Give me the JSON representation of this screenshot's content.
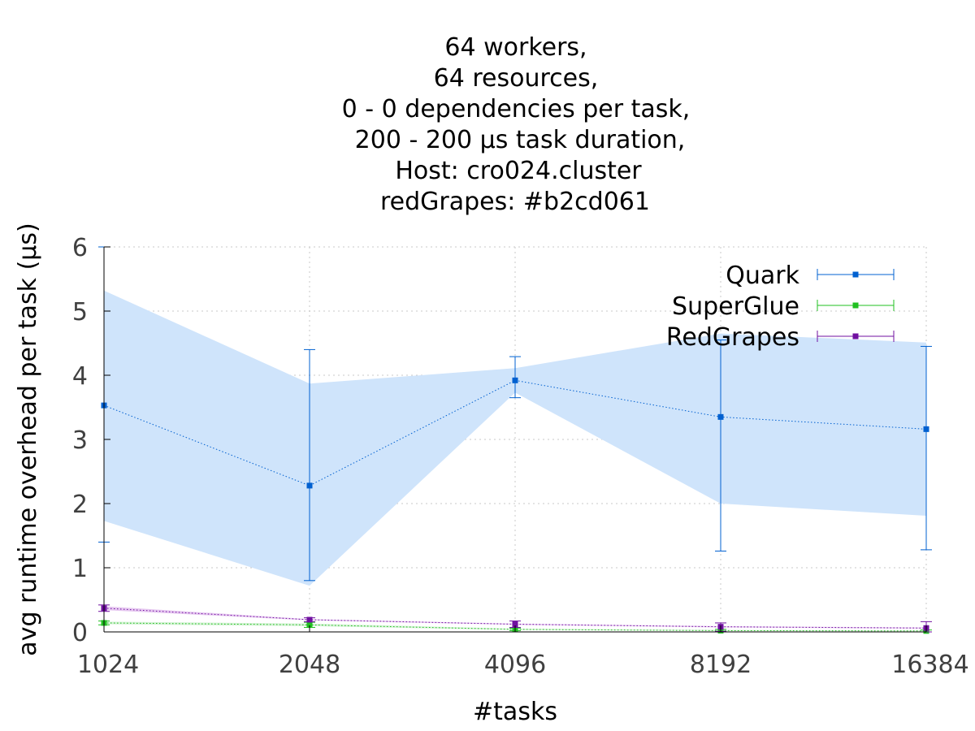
{
  "chart_data": {
    "type": "line",
    "title_lines": [
      "64 workers,",
      "64 resources,",
      "0 - 0 dependencies per task,",
      "200 - 200 µs task duration,",
      "Host: cro024.cluster",
      "redGrapes: #b2cd061"
    ],
    "xlabel": "#tasks",
    "ylabel": "avg runtime overhead per task (µs)",
    "x_scale": "log2",
    "categories": [
      "1024",
      "2048",
      "4096",
      "8192",
      "16384"
    ],
    "x": [
      1024,
      2048,
      4096,
      8192,
      16384
    ],
    "ylim": [
      0,
      6
    ],
    "yticks": [
      "0",
      "1",
      "2",
      "3",
      "4",
      "5",
      "6"
    ],
    "grid": true,
    "legend_position": "top-right",
    "series": [
      {
        "name": "Quark",
        "color": "#0060d0",
        "band_color": "#cfe4fb",
        "values": [
          3.53,
          2.28,
          3.92,
          3.35,
          3.16
        ],
        "error_low": [
          1.4,
          0.8,
          3.65,
          1.26,
          1.28
        ],
        "error_high": [
          6.0,
          4.4,
          4.29,
          4.55,
          4.45
        ],
        "band_low": [
          1.73,
          0.72,
          3.73,
          2.0,
          1.81
        ],
        "band_high": [
          5.32,
          3.87,
          4.11,
          4.65,
          4.51
        ]
      },
      {
        "name": "SuperGlue",
        "color": "#20c020",
        "band_color": "#d4f2d4",
        "values": [
          0.14,
          0.11,
          0.04,
          0.02,
          0.015
        ],
        "error_low": [
          0.11,
          0.07,
          0.02,
          0.005,
          0.0
        ],
        "error_high": [
          0.17,
          0.15,
          0.06,
          0.04,
          0.03
        ],
        "band_low": [
          0.12,
          0.09,
          0.03,
          0.015,
          0.01
        ],
        "band_high": [
          0.16,
          0.13,
          0.05,
          0.03,
          0.02
        ]
      },
      {
        "name": "RedGrapes",
        "color": "#7010a0",
        "band_color": "#e6c8f0",
        "values": [
          0.37,
          0.19,
          0.12,
          0.08,
          0.06
        ],
        "error_low": [
          0.32,
          0.16,
          0.07,
          0.01,
          0.0
        ],
        "error_high": [
          0.42,
          0.22,
          0.17,
          0.14,
          0.16
        ],
        "band_low": [
          0.34,
          0.18,
          0.11,
          0.07,
          0.05
        ],
        "band_high": [
          0.4,
          0.2,
          0.13,
          0.09,
          0.07
        ]
      }
    ]
  }
}
